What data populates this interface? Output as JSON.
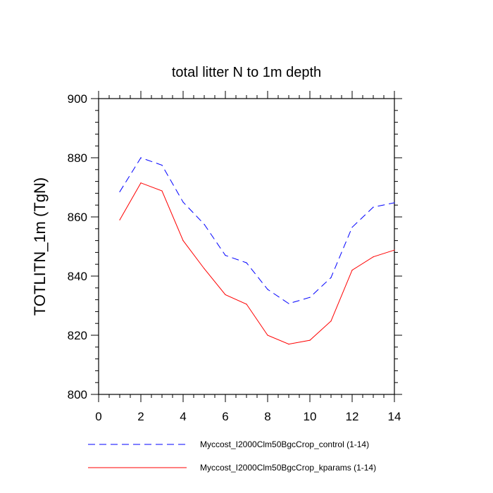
{
  "chart_data": {
    "type": "line",
    "title": "total litter N to 1m depth",
    "xlabel": "",
    "ylabel": "TOTLITN_1m  (TgN)",
    "xlim": [
      0,
      14
    ],
    "ylim": [
      800,
      900
    ],
    "x_ticks": [
      0,
      2,
      4,
      6,
      8,
      10,
      12,
      14
    ],
    "y_ticks": [
      800,
      820,
      840,
      860,
      880,
      900
    ],
    "x": [
      1,
      2,
      3,
      4,
      5,
      6,
      7,
      8,
      9,
      10,
      11,
      12,
      13,
      14
    ],
    "series": [
      {
        "name": "Myccost_I2000Clm50BgcCrop_control (1-14)",
        "color": "#0000ff",
        "dash": "dashed",
        "values": [
          868.5,
          880,
          877.5,
          865,
          857.5,
          847,
          844.5,
          835.5,
          830.7,
          832.8,
          839.5,
          856.5,
          863.3,
          864.8
        ]
      },
      {
        "name": "Myccost_I2000Clm50BgcCrop_kparams (1-14)",
        "color": "#ff0000",
        "dash": "solid",
        "values": [
          859,
          871.5,
          868.8,
          852,
          842.5,
          833.7,
          830.5,
          820,
          817,
          818.3,
          824.8,
          842,
          846.5,
          848.8
        ]
      }
    ],
    "legend_position": "bottom"
  }
}
